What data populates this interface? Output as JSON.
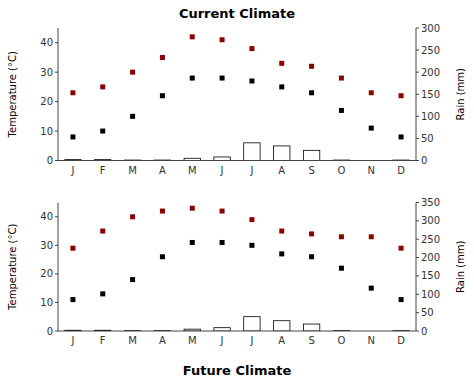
{
  "chart_data": [
    {
      "type": "bar",
      "title": "Current Climate",
      "categories": [
        "J",
        "F",
        "M",
        "A",
        "M",
        "J",
        "J",
        "A",
        "S",
        "O",
        "N",
        "D"
      ],
      "ylabel": "Temperature (°C)",
      "y2label": "Rain (mm)",
      "ylim": [
        0,
        45
      ],
      "yticks": [
        0,
        10,
        20,
        30,
        40
      ],
      "y2lim": [
        0,
        300
      ],
      "y2ticks": [
        0,
        50,
        100,
        150,
        200,
        250,
        300
      ],
      "grid": false,
      "series": [
        {
          "type": "bar",
          "axis": "y2",
          "color": "#ffffff",
          "values": [
            2,
            2,
            1,
            1,
            5,
            8,
            40,
            33,
            23,
            1,
            0,
            1
          ]
        },
        {
          "type": "scatter",
          "marker": "square",
          "color": "#8b0000",
          "values": [
            23,
            25,
            30,
            35,
            42,
            41,
            38,
            33,
            32,
            28,
            23,
            22
          ]
        },
        {
          "type": "scatter",
          "marker": "square",
          "color": "#000000",
          "values": [
            8,
            10,
            15,
            22,
            28,
            28,
            27,
            25,
            23,
            17,
            11,
            8
          ]
        }
      ]
    },
    {
      "type": "bar",
      "title": "Future Climate",
      "categories": [
        "J",
        "F",
        "M",
        "A",
        "M",
        "J",
        "J",
        "A",
        "S",
        "O",
        "N",
        "D"
      ],
      "ylabel": "Temperature (°C)",
      "y2label": "Rain (mm)",
      "ylim": [
        0,
        45
      ],
      "yticks": [
        0,
        10,
        20,
        30,
        40
      ],
      "y2lim": [
        0,
        350
      ],
      "y2ticks": [
        0,
        50,
        100,
        150,
        200,
        250,
        300,
        350
      ],
      "grid": false,
      "series": [
        {
          "type": "bar",
          "axis": "y2",
          "color": "#ffffff",
          "values": [
            2,
            2,
            1,
            1,
            5,
            9,
            39,
            28,
            19,
            1,
            0,
            1
          ]
        },
        {
          "type": "scatter",
          "marker": "square",
          "color": "#8b0000",
          "values": [
            29,
            35,
            40,
            42,
            43,
            42,
            39,
            35,
            34,
            33,
            33,
            29
          ]
        },
        {
          "type": "scatter",
          "marker": "square",
          "color": "#000000",
          "values": [
            11,
            13,
            18,
            26,
            31,
            31,
            30,
            27,
            26,
            22,
            15,
            11
          ]
        }
      ]
    }
  ]
}
